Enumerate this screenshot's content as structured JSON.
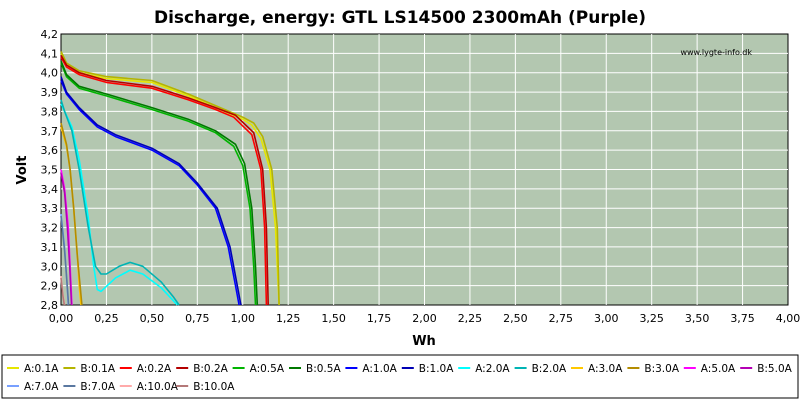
{
  "chart_data": {
    "type": "line",
    "title": "Discharge, energy: GTL LS14500 2300mAh (Purple)",
    "xlabel": "Wh",
    "ylabel": "Volt",
    "watermark": "www.lygte-info.dk",
    "xlim": [
      0,
      4
    ],
    "ylim": [
      2.8,
      4.2
    ],
    "x_ticks": [
      "0,00",
      "0,25",
      "0,50",
      "0,75",
      "1,00",
      "1,25",
      "1,50",
      "1,75",
      "2,00",
      "2,25",
      "2,50",
      "2,75",
      "3,00",
      "3,25",
      "3,50",
      "3,75",
      "4,00"
    ],
    "y_ticks": [
      "2,8",
      "2,9",
      "3,0",
      "3,1",
      "3,2",
      "3,3",
      "3,4",
      "3,5",
      "3,6",
      "3,7",
      "3,8",
      "3,9",
      "4,0",
      "4,1",
      "4,2"
    ],
    "grid": true,
    "legend_position": "bottom",
    "colors": {
      "plot_background": "#b3c7b0",
      "grid": "#ffffff"
    },
    "series": [
      {
        "name": "A:0.1A",
        "color": "#e6e600",
        "points": [
          [
            0,
            4.1
          ],
          [
            0.03,
            4.04
          ],
          [
            0.1,
            4.0
          ],
          [
            0.25,
            3.97
          ],
          [
            0.5,
            3.95
          ],
          [
            0.7,
            3.88
          ],
          [
            0.85,
            3.82
          ],
          [
            1.0,
            3.76
          ],
          [
            1.05,
            3.73
          ],
          [
            1.1,
            3.66
          ],
          [
            1.15,
            3.5
          ],
          [
            1.18,
            3.2
          ],
          [
            1.2,
            2.8
          ]
        ]
      },
      {
        "name": "B:0.1A",
        "color": "#b4b400",
        "points": [
          [
            0,
            4.11
          ],
          [
            0.03,
            4.05
          ],
          [
            0.1,
            4.01
          ],
          [
            0.25,
            3.98
          ],
          [
            0.5,
            3.96
          ],
          [
            0.7,
            3.89
          ],
          [
            0.85,
            3.83
          ],
          [
            1.0,
            3.77
          ],
          [
            1.06,
            3.74
          ],
          [
            1.11,
            3.67
          ],
          [
            1.16,
            3.5
          ],
          [
            1.19,
            3.2
          ],
          [
            1.2,
            2.8
          ]
        ]
      },
      {
        "name": "A:0.2A",
        "color": "#ff0000",
        "points": [
          [
            0,
            4.08
          ],
          [
            0.03,
            4.03
          ],
          [
            0.1,
            3.99
          ],
          [
            0.25,
            3.95
          ],
          [
            0.5,
            3.92
          ],
          [
            0.7,
            3.86
          ],
          [
            0.85,
            3.81
          ],
          [
            0.95,
            3.77
          ],
          [
            1.05,
            3.68
          ],
          [
            1.1,
            3.5
          ],
          [
            1.12,
            3.2
          ],
          [
            1.13,
            2.8
          ]
        ]
      },
      {
        "name": "B:0.2A",
        "color": "#b40000",
        "points": [
          [
            0,
            4.09
          ],
          [
            0.03,
            4.04
          ],
          [
            0.1,
            4.0
          ],
          [
            0.25,
            3.96
          ],
          [
            0.5,
            3.93
          ],
          [
            0.7,
            3.87
          ],
          [
            0.85,
            3.82
          ],
          [
            0.96,
            3.78
          ],
          [
            1.06,
            3.69
          ],
          [
            1.11,
            3.5
          ],
          [
            1.13,
            3.2
          ],
          [
            1.14,
            2.8
          ]
        ]
      },
      {
        "name": "A:0.5A",
        "color": "#00b400",
        "points": [
          [
            0,
            4.05
          ],
          [
            0.03,
            3.98
          ],
          [
            0.1,
            3.92
          ],
          [
            0.25,
            3.88
          ],
          [
            0.5,
            3.81
          ],
          [
            0.7,
            3.75
          ],
          [
            0.85,
            3.69
          ],
          [
            0.95,
            3.62
          ],
          [
            1.0,
            3.52
          ],
          [
            1.04,
            3.3
          ],
          [
            1.06,
            3.0
          ],
          [
            1.07,
            2.8
          ]
        ]
      },
      {
        "name": "B:0.5A",
        "color": "#007800",
        "points": [
          [
            0,
            4.06
          ],
          [
            0.03,
            3.99
          ],
          [
            0.1,
            3.93
          ],
          [
            0.25,
            3.89
          ],
          [
            0.5,
            3.82
          ],
          [
            0.7,
            3.76
          ],
          [
            0.85,
            3.7
          ],
          [
            0.96,
            3.63
          ],
          [
            1.01,
            3.53
          ],
          [
            1.05,
            3.3
          ],
          [
            1.07,
            3.0
          ],
          [
            1.08,
            2.8
          ]
        ]
      },
      {
        "name": "A:1.0A",
        "color": "#0000ff",
        "points": [
          [
            0,
            3.96
          ],
          [
            0.03,
            3.89
          ],
          [
            0.1,
            3.81
          ],
          [
            0.2,
            3.72
          ],
          [
            0.3,
            3.67
          ],
          [
            0.5,
            3.6
          ],
          [
            0.65,
            3.52
          ],
          [
            0.75,
            3.42
          ],
          [
            0.85,
            3.3
          ],
          [
            0.92,
            3.1
          ],
          [
            0.96,
            2.9
          ],
          [
            0.98,
            2.8
          ]
        ]
      },
      {
        "name": "B:1.0A",
        "color": "#0000b4",
        "points": [
          [
            0,
            3.98
          ],
          [
            0.03,
            3.9
          ],
          [
            0.1,
            3.82
          ],
          [
            0.2,
            3.73
          ],
          [
            0.3,
            3.68
          ],
          [
            0.5,
            3.61
          ],
          [
            0.65,
            3.53
          ],
          [
            0.75,
            3.43
          ],
          [
            0.86,
            3.3
          ],
          [
            0.93,
            3.1
          ],
          [
            0.97,
            2.9
          ],
          [
            0.99,
            2.8
          ]
        ]
      },
      {
        "name": "A:2.0A",
        "color": "#00ffff",
        "points": [
          [
            0,
            3.84
          ],
          [
            0.02,
            3.8
          ],
          [
            0.06,
            3.72
          ],
          [
            0.1,
            3.55
          ],
          [
            0.15,
            3.25
          ],
          [
            0.18,
            3.0
          ],
          [
            0.2,
            2.88
          ],
          [
            0.22,
            2.87
          ],
          [
            0.3,
            2.94
          ],
          [
            0.38,
            2.98
          ],
          [
            0.45,
            2.96
          ],
          [
            0.55,
            2.89
          ],
          [
            0.62,
            2.82
          ],
          [
            0.64,
            2.8
          ]
        ]
      },
      {
        "name": "B:2.0A",
        "color": "#00b4b4",
        "points": [
          [
            0,
            3.86
          ],
          [
            0.02,
            3.8
          ],
          [
            0.06,
            3.7
          ],
          [
            0.1,
            3.5
          ],
          [
            0.15,
            3.2
          ],
          [
            0.19,
            3.0
          ],
          [
            0.22,
            2.96
          ],
          [
            0.25,
            2.96
          ],
          [
            0.32,
            3.0
          ],
          [
            0.38,
            3.02
          ],
          [
            0.45,
            3.0
          ],
          [
            0.55,
            2.92
          ],
          [
            0.62,
            2.84
          ],
          [
            0.65,
            2.8
          ]
        ]
      },
      {
        "name": "A:3.0A",
        "color": "#ffc800",
        "points": [
          [
            0,
            3.72
          ],
          [
            0.03,
            3.62
          ],
          [
            0.05,
            3.5
          ],
          [
            0.07,
            3.3
          ],
          [
            0.09,
            3.05
          ],
          [
            0.1,
            2.9
          ],
          [
            0.11,
            2.8
          ]
        ]
      },
      {
        "name": "B:3.0A",
        "color": "#b48c00",
        "points": [
          [
            0,
            3.74
          ],
          [
            0.03,
            3.63
          ],
          [
            0.05,
            3.5
          ],
          [
            0.07,
            3.3
          ],
          [
            0.09,
            3.05
          ],
          [
            0.105,
            2.9
          ],
          [
            0.115,
            2.8
          ]
        ]
      },
      {
        "name": "A:5.0A",
        "color": "#ff00ff",
        "points": [
          [
            0,
            3.5
          ],
          [
            0.02,
            3.4
          ],
          [
            0.04,
            3.2
          ],
          [
            0.05,
            3.0
          ],
          [
            0.06,
            2.8
          ]
        ]
      },
      {
        "name": "B:5.0A",
        "color": "#b400b4",
        "points": [
          [
            0,
            3.48
          ],
          [
            0.02,
            3.38
          ],
          [
            0.035,
            3.2
          ],
          [
            0.048,
            3.0
          ],
          [
            0.058,
            2.8
          ]
        ]
      },
      {
        "name": "A:7.0A",
        "color": "#78a0ff",
        "points": [
          [
            0,
            3.27
          ],
          [
            0.02,
            3.1
          ],
          [
            0.03,
            2.95
          ],
          [
            0.04,
            2.8
          ]
        ]
      },
      {
        "name": "B:7.0A",
        "color": "#5a78a0",
        "points": [
          [
            0,
            3.26
          ],
          [
            0.02,
            3.08
          ],
          [
            0.032,
            2.93
          ],
          [
            0.042,
            2.8
          ]
        ]
      },
      {
        "name": "A:10.0A",
        "color": "#ffaaaa",
        "points": [
          [
            0,
            2.95
          ],
          [
            0.01,
            2.86
          ],
          [
            0.02,
            2.8
          ]
        ]
      },
      {
        "name": "B:10.0A",
        "color": "#b47878",
        "points": [
          [
            0,
            2.94
          ],
          [
            0.01,
            2.85
          ],
          [
            0.018,
            2.8
          ]
        ]
      }
    ]
  }
}
